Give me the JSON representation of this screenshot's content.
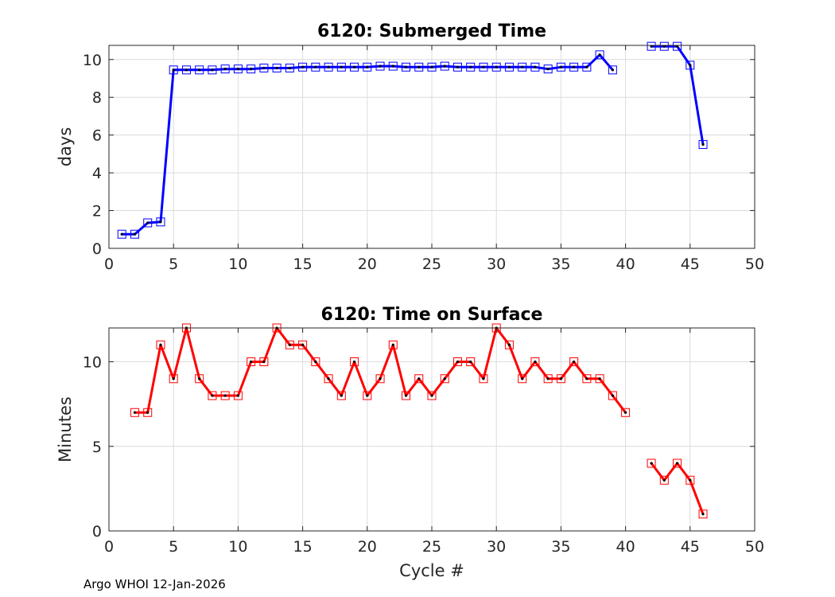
{
  "footer": "Argo WHOI 12-Jan-2026",
  "chart_data": [
    {
      "type": "line",
      "title": "6120: Submerged Time",
      "xlabel": "",
      "ylabel": "days",
      "xlim": [
        0,
        50
      ],
      "ylim": [
        0,
        10.75
      ],
      "xticks": [
        0,
        5,
        10,
        15,
        20,
        25,
        30,
        35,
        40,
        45,
        50
      ],
      "yticks": [
        0,
        2,
        4,
        6,
        8,
        10
      ],
      "grid": true,
      "color": "#0000ff",
      "marker": "square",
      "segments": [
        {
          "x": [
            1,
            2,
            3,
            4,
            5,
            6,
            7,
            8,
            9,
            10,
            11,
            12,
            13,
            14,
            15,
            16,
            17,
            18,
            19,
            20,
            21,
            22,
            23,
            24,
            25,
            26,
            27,
            28,
            29,
            30,
            31,
            32,
            33,
            34,
            35,
            36,
            37,
            38,
            39
          ],
          "y": [
            0.75,
            0.75,
            1.35,
            1.4,
            9.45,
            9.45,
            9.45,
            9.45,
            9.5,
            9.5,
            9.5,
            9.55,
            9.55,
            9.55,
            9.6,
            9.6,
            9.6,
            9.6,
            9.6,
            9.6,
            9.65,
            9.65,
            9.6,
            9.6,
            9.6,
            9.65,
            9.6,
            9.6,
            9.6,
            9.6,
            9.6,
            9.6,
            9.6,
            9.5,
            9.6,
            9.6,
            9.6,
            10.25,
            9.45
          ]
        },
        {
          "x": [
            42,
            43,
            44,
            45,
            46
          ],
          "y": [
            10.7,
            10.7,
            10.7,
            9.7,
            5.5
          ]
        }
      ]
    },
    {
      "type": "line",
      "title": "6120: Time on Surface",
      "xlabel": "Cycle #",
      "ylabel": "Minutes",
      "xlim": [
        0,
        50
      ],
      "ylim": [
        0,
        12
      ],
      "xticks": [
        0,
        5,
        10,
        15,
        20,
        25,
        30,
        35,
        40,
        45,
        50
      ],
      "yticks": [
        0,
        5,
        10
      ],
      "grid": true,
      "color": "#ff0000",
      "marker": "square",
      "segments": [
        {
          "x": [
            2,
            3,
            4,
            5,
            6,
            7,
            8,
            9,
            10,
            11,
            12,
            13,
            14,
            15,
            16,
            17,
            18,
            19,
            20,
            21,
            22,
            23,
            24,
            25,
            26,
            27,
            28,
            29,
            30,
            31,
            32,
            33,
            34,
            35,
            36,
            37,
            38,
            39,
            40
          ],
          "y": [
            7,
            7,
            11,
            9,
            12,
            9,
            8,
            8,
            8,
            10,
            10,
            12,
            11,
            11,
            10,
            9,
            8,
            10,
            8,
            9,
            11,
            8,
            9,
            8,
            9,
            10,
            10,
            9,
            12,
            11,
            9,
            10,
            9,
            9,
            10,
            9,
            9,
            8,
            7
          ]
        },
        {
          "x": [
            42,
            43,
            44,
            45,
            46
          ],
          "y": [
            4,
            3,
            4,
            3,
            1
          ]
        }
      ]
    }
  ]
}
